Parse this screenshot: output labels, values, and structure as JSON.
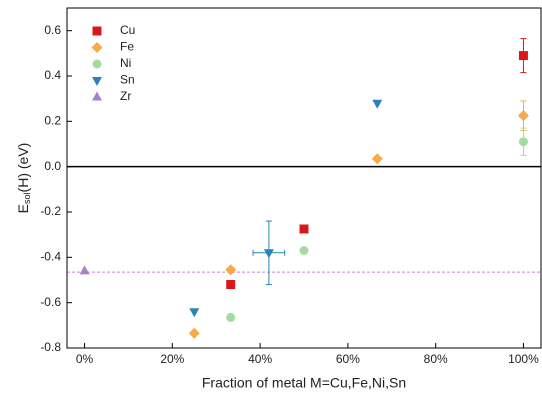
{
  "chart_data": {
    "type": "scatter",
    "x_label": "Fraction of metal M=Cu,Fe,Ni,Sn",
    "y_label": {
      "main": "E",
      "sub": "sol",
      "rest": "(H)  (eV)"
    },
    "xlim": [
      -4,
      104
    ],
    "ylim": [
      -0.8,
      0.7
    ],
    "xticks": [
      {
        "value": 0,
        "label": "0%"
      },
      {
        "value": 20,
        "label": "20%"
      },
      {
        "value": 40,
        "label": "40%"
      },
      {
        "value": 60,
        "label": "60%"
      },
      {
        "value": 80,
        "label": "80%"
      },
      {
        "value": 100,
        "label": "100%"
      }
    ],
    "yticks": [
      0.6,
      0.4,
      0.2,
      {
        "value": 0,
        "label": "0.0"
      },
      -0.2,
      -0.4,
      -0.6,
      -0.8
    ],
    "legend": "upper left",
    "hlines": [
      {
        "y": 0,
        "color": "#000000",
        "style": "solid"
      },
      {
        "y": -0.465,
        "color": "#c77fe0",
        "style": "dashed"
      }
    ],
    "series": [
      {
        "name": "Cu",
        "color": "#d7191c",
        "marker": "square",
        "x": [
          33.3,
          50,
          100
        ],
        "values": [
          -0.52,
          -0.275,
          0.49
        ],
        "errors": [
          null,
          null,
          0.075
        ]
      },
      {
        "name": "Fe",
        "color": "#f9a84a",
        "marker": "diamond",
        "x": [
          25,
          33.3,
          66.7,
          100
        ],
        "values": [
          -0.735,
          -0.455,
          0.035,
          0.225
        ],
        "errors": [
          null,
          null,
          null,
          0.065
        ]
      },
      {
        "name": "Ni",
        "color": "#a6dba0",
        "marker": "circle",
        "x": [
          33.3,
          50,
          100
        ],
        "values": [
          -0.665,
          -0.37,
          0.11
        ],
        "errors": [
          null,
          null,
          0.06
        ]
      },
      {
        "name": "Sn",
        "color": "#2b83ba",
        "marker": "triangle-down",
        "x": [
          25,
          42,
          66.7
        ],
        "values": [
          -0.64,
          -0.38,
          0.28
        ],
        "errors": [
          null,
          0.14,
          null
        ],
        "xerrors": [
          null,
          3.6,
          null
        ]
      },
      {
        "name": "Zr",
        "color": "#a982c4",
        "marker": "triangle-up",
        "x": [
          0
        ],
        "values": [
          -0.46
        ],
        "errors": [
          null
        ]
      }
    ]
  }
}
